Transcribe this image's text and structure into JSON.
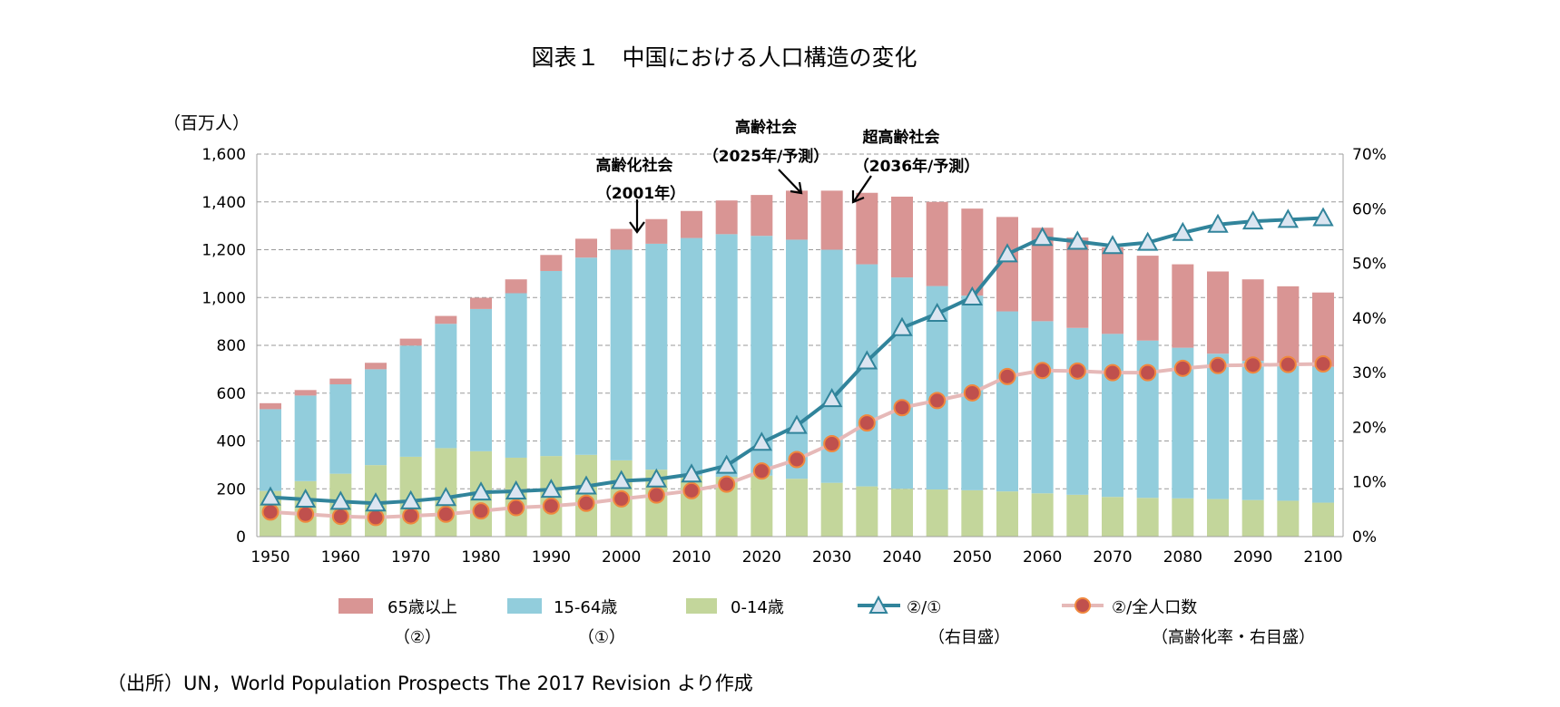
{
  "title": "図表１　中国における人口構造の変化",
  "source": "（出所）UN，World Population Prospects The 2017 Revision より作成",
  "colors": {
    "age65": "#d99594",
    "age15_64": "#92cddc",
    "age0_14": "#c3d69b",
    "ratio_line": "#31849b",
    "ratio_marker": "#dbe5f1",
    "aging_line": "#e6b9b8",
    "aging_marker": "#c0504d",
    "aging_marker_edge": "#f0883e"
  },
  "annotations": [
    {
      "label": "高齢化社会",
      "sub": "（2001年）"
    },
    {
      "label": "高齢社会",
      "sub": "（2025年/予測）"
    },
    {
      "label": "超高齢社会",
      "sub": "（2036年/予測）"
    }
  ],
  "legend": [
    {
      "label": "65歳以上",
      "note": "（②）"
    },
    {
      "label": "15-64歳",
      "note": "（①）"
    },
    {
      "label": "0-14歳",
      "note": ""
    },
    {
      "label": "②/①",
      "note": "（右目盛）"
    },
    {
      "label": "②/全人口数",
      "note": "（高齢化率・右目盛）"
    }
  ],
  "chart_data": {
    "type": "bar",
    "stacked": true,
    "title": "図表１　中国における人口構造の変化",
    "ylabel": "（百万人）",
    "ylim": [
      0,
      1600
    ],
    "yticks": [
      "0",
      "200",
      "400",
      "600",
      "800",
      "1,000",
      "1,200",
      "1,400",
      "1,600"
    ],
    "y2lim": [
      0,
      70
    ],
    "y2ticks": [
      "0%",
      "10%",
      "20%",
      "30%",
      "40%",
      "50%",
      "60%",
      "70%"
    ],
    "xticks": [
      "1950",
      "1960",
      "1970",
      "1980",
      "1990",
      "2000",
      "2010",
      "2020",
      "2030",
      "2040",
      "2050",
      "2060",
      "2070",
      "2080",
      "2090",
      "2100"
    ],
    "grid": true,
    "legend_position": "bottom",
    "categories": [
      1950,
      1955,
      1960,
      1965,
      1970,
      1975,
      1980,
      1985,
      1990,
      1995,
      2000,
      2005,
      2010,
      2015,
      2020,
      2025,
      2030,
      2035,
      2040,
      2045,
      2050,
      2055,
      2060,
      2065,
      2070,
      2075,
      2080,
      2085,
      2090,
      2095,
      2100
    ],
    "series": [
      {
        "name": "0-14歳",
        "axis": "left",
        "type": "bar",
        "values": [
          191,
          232,
          263,
          299,
          334,
          370,
          357,
          330,
          337,
          342,
          319,
          280,
          255,
          250,
          255,
          242,
          225,
          210,
          200,
          197,
          194,
          189,
          181,
          175,
          166,
          162,
          160,
          157,
          153,
          150,
          142
        ]
      },
      {
        "name": "15-64歳",
        "axis": "left",
        "type": "bar",
        "values": [
          342,
          358,
          374,
          401,
          465,
          520,
          595,
          688,
          774,
          825,
          881,
          945,
          994,
          1015,
          1003,
          1000,
          975,
          929,
          884,
          851,
          814,
          753,
          720,
          698,
          682,
          658,
          630,
          608,
          582,
          575,
          568
        ]
      },
      {
        "name": "65歳以上",
        "axis": "left",
        "type": "bar",
        "values": [
          25,
          23,
          24,
          27,
          29,
          33,
          47,
          58,
          67,
          79,
          87,
          103,
          113,
          141,
          171,
          205,
          247,
          299,
          338,
          352,
          364,
          395,
          391,
          378,
          362,
          355,
          349,
          344,
          341,
          322,
          311
        ]
      },
      {
        "name": "②/①",
        "axis": "right",
        "type": "line",
        "values": [
          7.2,
          6.8,
          6.4,
          6.1,
          6.5,
          7.1,
          8.1,
          8.3,
          8.6,
          9.2,
          10.2,
          10.5,
          11.4,
          13.0,
          17.2,
          20.3,
          25.2,
          32.1,
          38.2,
          40.8,
          43.8,
          51.7,
          54.7,
          54.0,
          53.2,
          53.8,
          55.6,
          57.1,
          57.7,
          58.0,
          58.3
        ]
      },
      {
        "name": "②/全人口数",
        "axis": "right",
        "type": "line",
        "values": [
          4.5,
          4.1,
          3.7,
          3.5,
          3.8,
          4.1,
          4.7,
          5.3,
          5.6,
          6.1,
          6.9,
          7.6,
          8.4,
          9.6,
          12.0,
          14.1,
          17.0,
          20.8,
          23.6,
          24.9,
          26.3,
          29.3,
          30.4,
          30.3,
          30.0,
          30.0,
          30.8,
          31.3,
          31.4,
          31.5,
          31.6
        ]
      }
    ]
  }
}
